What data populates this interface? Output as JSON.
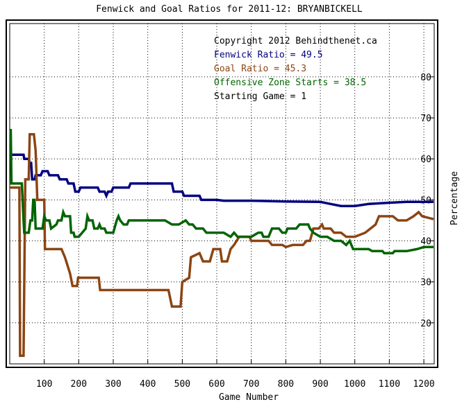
{
  "chart_data": {
    "type": "line",
    "title": "Fenwick and Goal Ratios for 2011-12: BRYANBICKELL",
    "xlabel": "Game Number",
    "ylabel": "Percentage",
    "xlim": [
      0,
      1230
    ],
    "ylim": [
      10,
      93
    ],
    "x_ticks": [
      100,
      200,
      300,
      400,
      500,
      600,
      700,
      800,
      900,
      1000,
      1100,
      1200
    ],
    "y_ticks": [
      20,
      30,
      40,
      50,
      60,
      70,
      80
    ],
    "grid": true,
    "annotations": [
      {
        "text": "Copyright 2012 Behindthenet.ca",
        "color": "#000000"
      },
      {
        "text": "Fenwick Ratio = 49.5",
        "color": "#000080"
      },
      {
        "text": "Goal Ratio = 45.3",
        "color": "#8b4513"
      },
      {
        "text": "Offensive Zone Starts = 38.5",
        "color": "#006400"
      },
      {
        "text": "Starting Game = 1",
        "color": "#000000"
      }
    ],
    "series": [
      {
        "color": "#000080",
        "points": [
          [
            0,
            61
          ],
          [
            40,
            61
          ],
          [
            42,
            60
          ],
          [
            55,
            60
          ],
          [
            58,
            59
          ],
          [
            62,
            59
          ],
          [
            65,
            55
          ],
          [
            72,
            55
          ],
          [
            75,
            56
          ],
          [
            90,
            56
          ],
          [
            95,
            57
          ],
          [
            110,
            57
          ],
          [
            115,
            56
          ],
          [
            140,
            56
          ],
          [
            145,
            55
          ],
          [
            165,
            55
          ],
          [
            170,
            54
          ],
          [
            185,
            54
          ],
          [
            190,
            52
          ],
          [
            200,
            52
          ],
          [
            205,
            53
          ],
          [
            255,
            53
          ],
          [
            260,
            52
          ],
          [
            275,
            52
          ],
          [
            280,
            51
          ],
          [
            285,
            52
          ],
          [
            295,
            52
          ],
          [
            300,
            53
          ],
          [
            345,
            53
          ],
          [
            350,
            54
          ],
          [
            470,
            54
          ],
          [
            475,
            52
          ],
          [
            500,
            52
          ],
          [
            505,
            51
          ],
          [
            550,
            51
          ],
          [
            555,
            50
          ],
          [
            600,
            50
          ],
          [
            620,
            49.8
          ],
          [
            700,
            49.8
          ],
          [
            800,
            49.6
          ],
          [
            900,
            49.5
          ],
          [
            930,
            49
          ],
          [
            960,
            48.5
          ],
          [
            1000,
            48.5
          ],
          [
            1040,
            49
          ],
          [
            1100,
            49.3
          ],
          [
            1150,
            49.5
          ],
          [
            1200,
            49.5
          ],
          [
            1228,
            49.5
          ]
        ]
      },
      {
        "color": "#8b4513",
        "points": [
          [
            0,
            53
          ],
          [
            28,
            53
          ],
          [
            30,
            12
          ],
          [
            40,
            12
          ],
          [
            45,
            55
          ],
          [
            55,
            55
          ],
          [
            58,
            66
          ],
          [
            70,
            66
          ],
          [
            75,
            62
          ],
          [
            80,
            50
          ],
          [
            100,
            50
          ],
          [
            102,
            38
          ],
          [
            150,
            38
          ],
          [
            160,
            36
          ],
          [
            175,
            32
          ],
          [
            182,
            29
          ],
          [
            195,
            29
          ],
          [
            198,
            31
          ],
          [
            258,
            31
          ],
          [
            262,
            28
          ],
          [
            460,
            28
          ],
          [
            470,
            24
          ],
          [
            495,
            24
          ],
          [
            500,
            30
          ],
          [
            520,
            31
          ],
          [
            525,
            36
          ],
          [
            550,
            37
          ],
          [
            560,
            35
          ],
          [
            580,
            35
          ],
          [
            590,
            38
          ],
          [
            610,
            38
          ],
          [
            615,
            35
          ],
          [
            630,
            35
          ],
          [
            640,
            38
          ],
          [
            650,
            39
          ],
          [
            665,
            41
          ],
          [
            695,
            41
          ],
          [
            700,
            40
          ],
          [
            750,
            40
          ],
          [
            760,
            39
          ],
          [
            790,
            39
          ],
          [
            800,
            38.5
          ],
          [
            820,
            39
          ],
          [
            850,
            39
          ],
          [
            860,
            40
          ],
          [
            870,
            40
          ],
          [
            880,
            43
          ],
          [
            895,
            43
          ],
          [
            905,
            44
          ],
          [
            910,
            43
          ],
          [
            930,
            43
          ],
          [
            940,
            42
          ],
          [
            960,
            42
          ],
          [
            975,
            41
          ],
          [
            1000,
            41
          ],
          [
            1030,
            42
          ],
          [
            1060,
            44
          ],
          [
            1070,
            46
          ],
          [
            1110,
            46
          ],
          [
            1125,
            45
          ],
          [
            1150,
            45
          ],
          [
            1170,
            46
          ],
          [
            1185,
            47
          ],
          [
            1195,
            46
          ],
          [
            1228,
            45.3
          ]
        ]
      },
      {
        "color": "#006400",
        "points": [
          [
            0,
            67
          ],
          [
            3,
            67
          ],
          [
            5,
            54
          ],
          [
            35,
            54
          ],
          [
            40,
            45
          ],
          [
            42,
            42
          ],
          [
            55,
            42
          ],
          [
            60,
            45
          ],
          [
            65,
            45
          ],
          [
            68,
            50
          ],
          [
            72,
            50
          ],
          [
            75,
            43
          ],
          [
            95,
            43
          ],
          [
            100,
            46
          ],
          [
            105,
            45
          ],
          [
            115,
            45
          ],
          [
            120,
            43
          ],
          [
            135,
            44
          ],
          [
            140,
            45
          ],
          [
            150,
            45
          ],
          [
            155,
            47
          ],
          [
            160,
            46
          ],
          [
            175,
            46
          ],
          [
            178,
            42
          ],
          [
            185,
            42
          ],
          [
            188,
            41
          ],
          [
            195,
            41
          ],
          [
            200,
            41
          ],
          [
            210,
            42
          ],
          [
            220,
            43
          ],
          [
            225,
            46
          ],
          [
            230,
            45
          ],
          [
            240,
            45
          ],
          [
            245,
            43
          ],
          [
            255,
            43
          ],
          [
            260,
            44
          ],
          [
            265,
            43
          ],
          [
            275,
            43
          ],
          [
            280,
            42
          ],
          [
            300,
            42
          ],
          [
            310,
            45
          ],
          [
            315,
            46
          ],
          [
            320,
            45
          ],
          [
            330,
            44
          ],
          [
            340,
            44
          ],
          [
            345,
            45
          ],
          [
            430,
            45
          ],
          [
            450,
            45
          ],
          [
            470,
            44
          ],
          [
            490,
            44
          ],
          [
            510,
            45
          ],
          [
            520,
            44
          ],
          [
            530,
            44
          ],
          [
            540,
            43
          ],
          [
            560,
            43
          ],
          [
            570,
            42
          ],
          [
            580,
            42
          ],
          [
            600,
            42
          ],
          [
            620,
            42
          ],
          [
            640,
            41
          ],
          [
            650,
            42
          ],
          [
            660,
            41
          ],
          [
            700,
            41
          ],
          [
            720,
            42
          ],
          [
            730,
            42
          ],
          [
            735,
            41
          ],
          [
            750,
            41
          ],
          [
            760,
            43
          ],
          [
            780,
            43
          ],
          [
            790,
            42
          ],
          [
            800,
            42
          ],
          [
            805,
            43
          ],
          [
            830,
            43
          ],
          [
            840,
            44
          ],
          [
            865,
            44
          ],
          [
            870,
            43
          ],
          [
            880,
            42
          ],
          [
            900,
            41
          ],
          [
            920,
            41
          ],
          [
            940,
            40
          ],
          [
            960,
            40
          ],
          [
            975,
            39
          ],
          [
            985,
            40
          ],
          [
            995,
            38
          ],
          [
            1040,
            38
          ],
          [
            1050,
            37.5
          ],
          [
            1080,
            37.5
          ],
          [
            1085,
            37
          ],
          [
            1110,
            37
          ],
          [
            1115,
            37.5
          ],
          [
            1150,
            37.5
          ],
          [
            1180,
            38
          ],
          [
            1200,
            38.5
          ],
          [
            1228,
            38.5
          ]
        ]
      }
    ]
  }
}
